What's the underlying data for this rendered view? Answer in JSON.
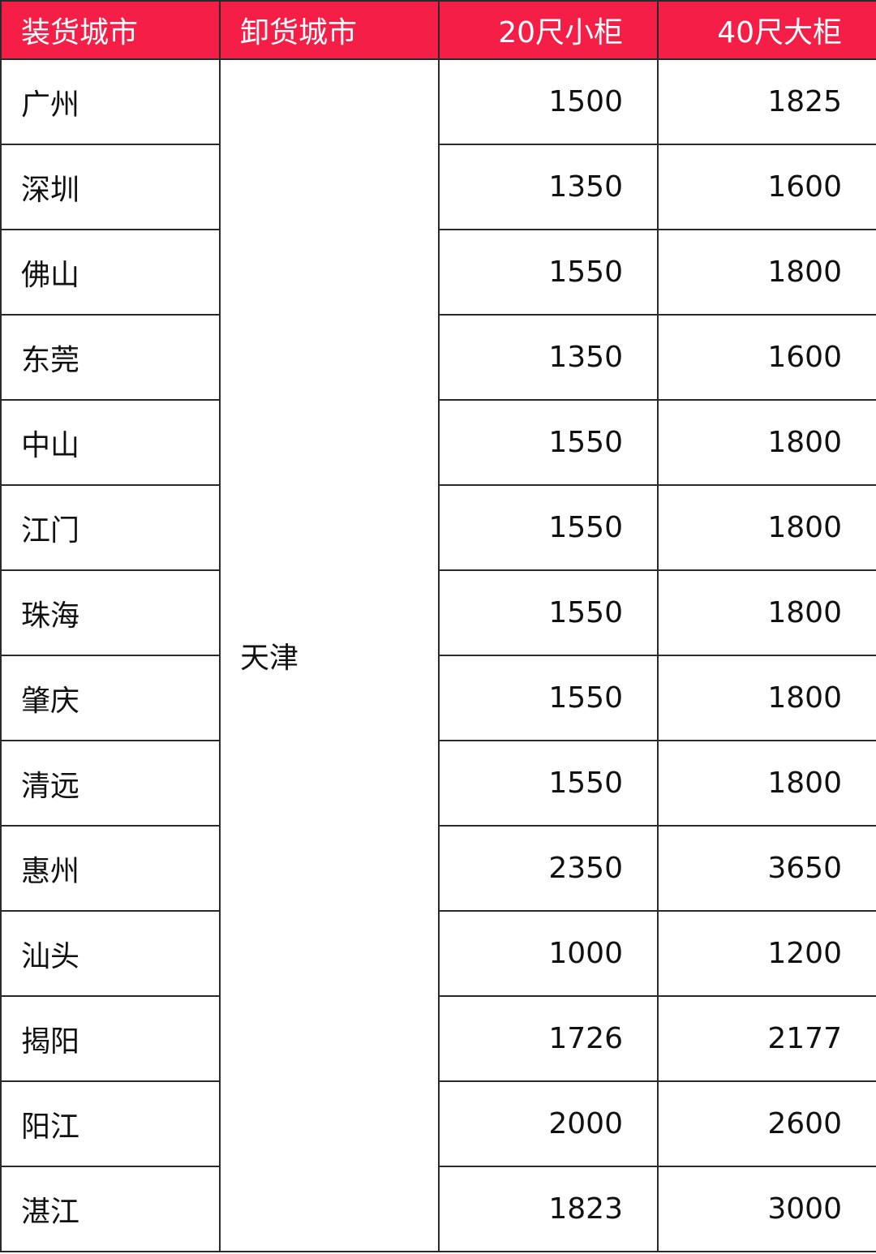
{
  "colors": {
    "header_bg": "#f51e47",
    "header_text": "#ffffff",
    "border": "#2a2a2a"
  },
  "headers": [
    "装货城市",
    "卸货城市",
    "20尺小柜",
    "40尺大柜"
  ],
  "destination": "天津",
  "rows": [
    {
      "city": "广州",
      "ft20": "1500",
      "ft40": "1825"
    },
    {
      "city": "深圳",
      "ft20": "1350",
      "ft40": "1600"
    },
    {
      "city": "佛山",
      "ft20": "1550",
      "ft40": "1800"
    },
    {
      "city": "东莞",
      "ft20": "1350",
      "ft40": "1600"
    },
    {
      "city": "中山",
      "ft20": "1550",
      "ft40": "1800"
    },
    {
      "city": "江门",
      "ft20": "1550",
      "ft40": "1800"
    },
    {
      "city": "珠海",
      "ft20": "1550",
      "ft40": "1800"
    },
    {
      "city": "肇庆",
      "ft20": "1550",
      "ft40": "1800"
    },
    {
      "city": "清远",
      "ft20": "1550",
      "ft40": "1800"
    },
    {
      "city": "惠州",
      "ft20": "2350",
      "ft40": "3650"
    },
    {
      "city": "汕头",
      "ft20": "1000",
      "ft40": "1200"
    },
    {
      "city": "揭阳",
      "ft20": "1726",
      "ft40": "2177"
    },
    {
      "city": "阳江",
      "ft20": "2000",
      "ft40": "2600"
    },
    {
      "city": "湛江",
      "ft20": "1823",
      "ft40": "3000"
    }
  ]
}
